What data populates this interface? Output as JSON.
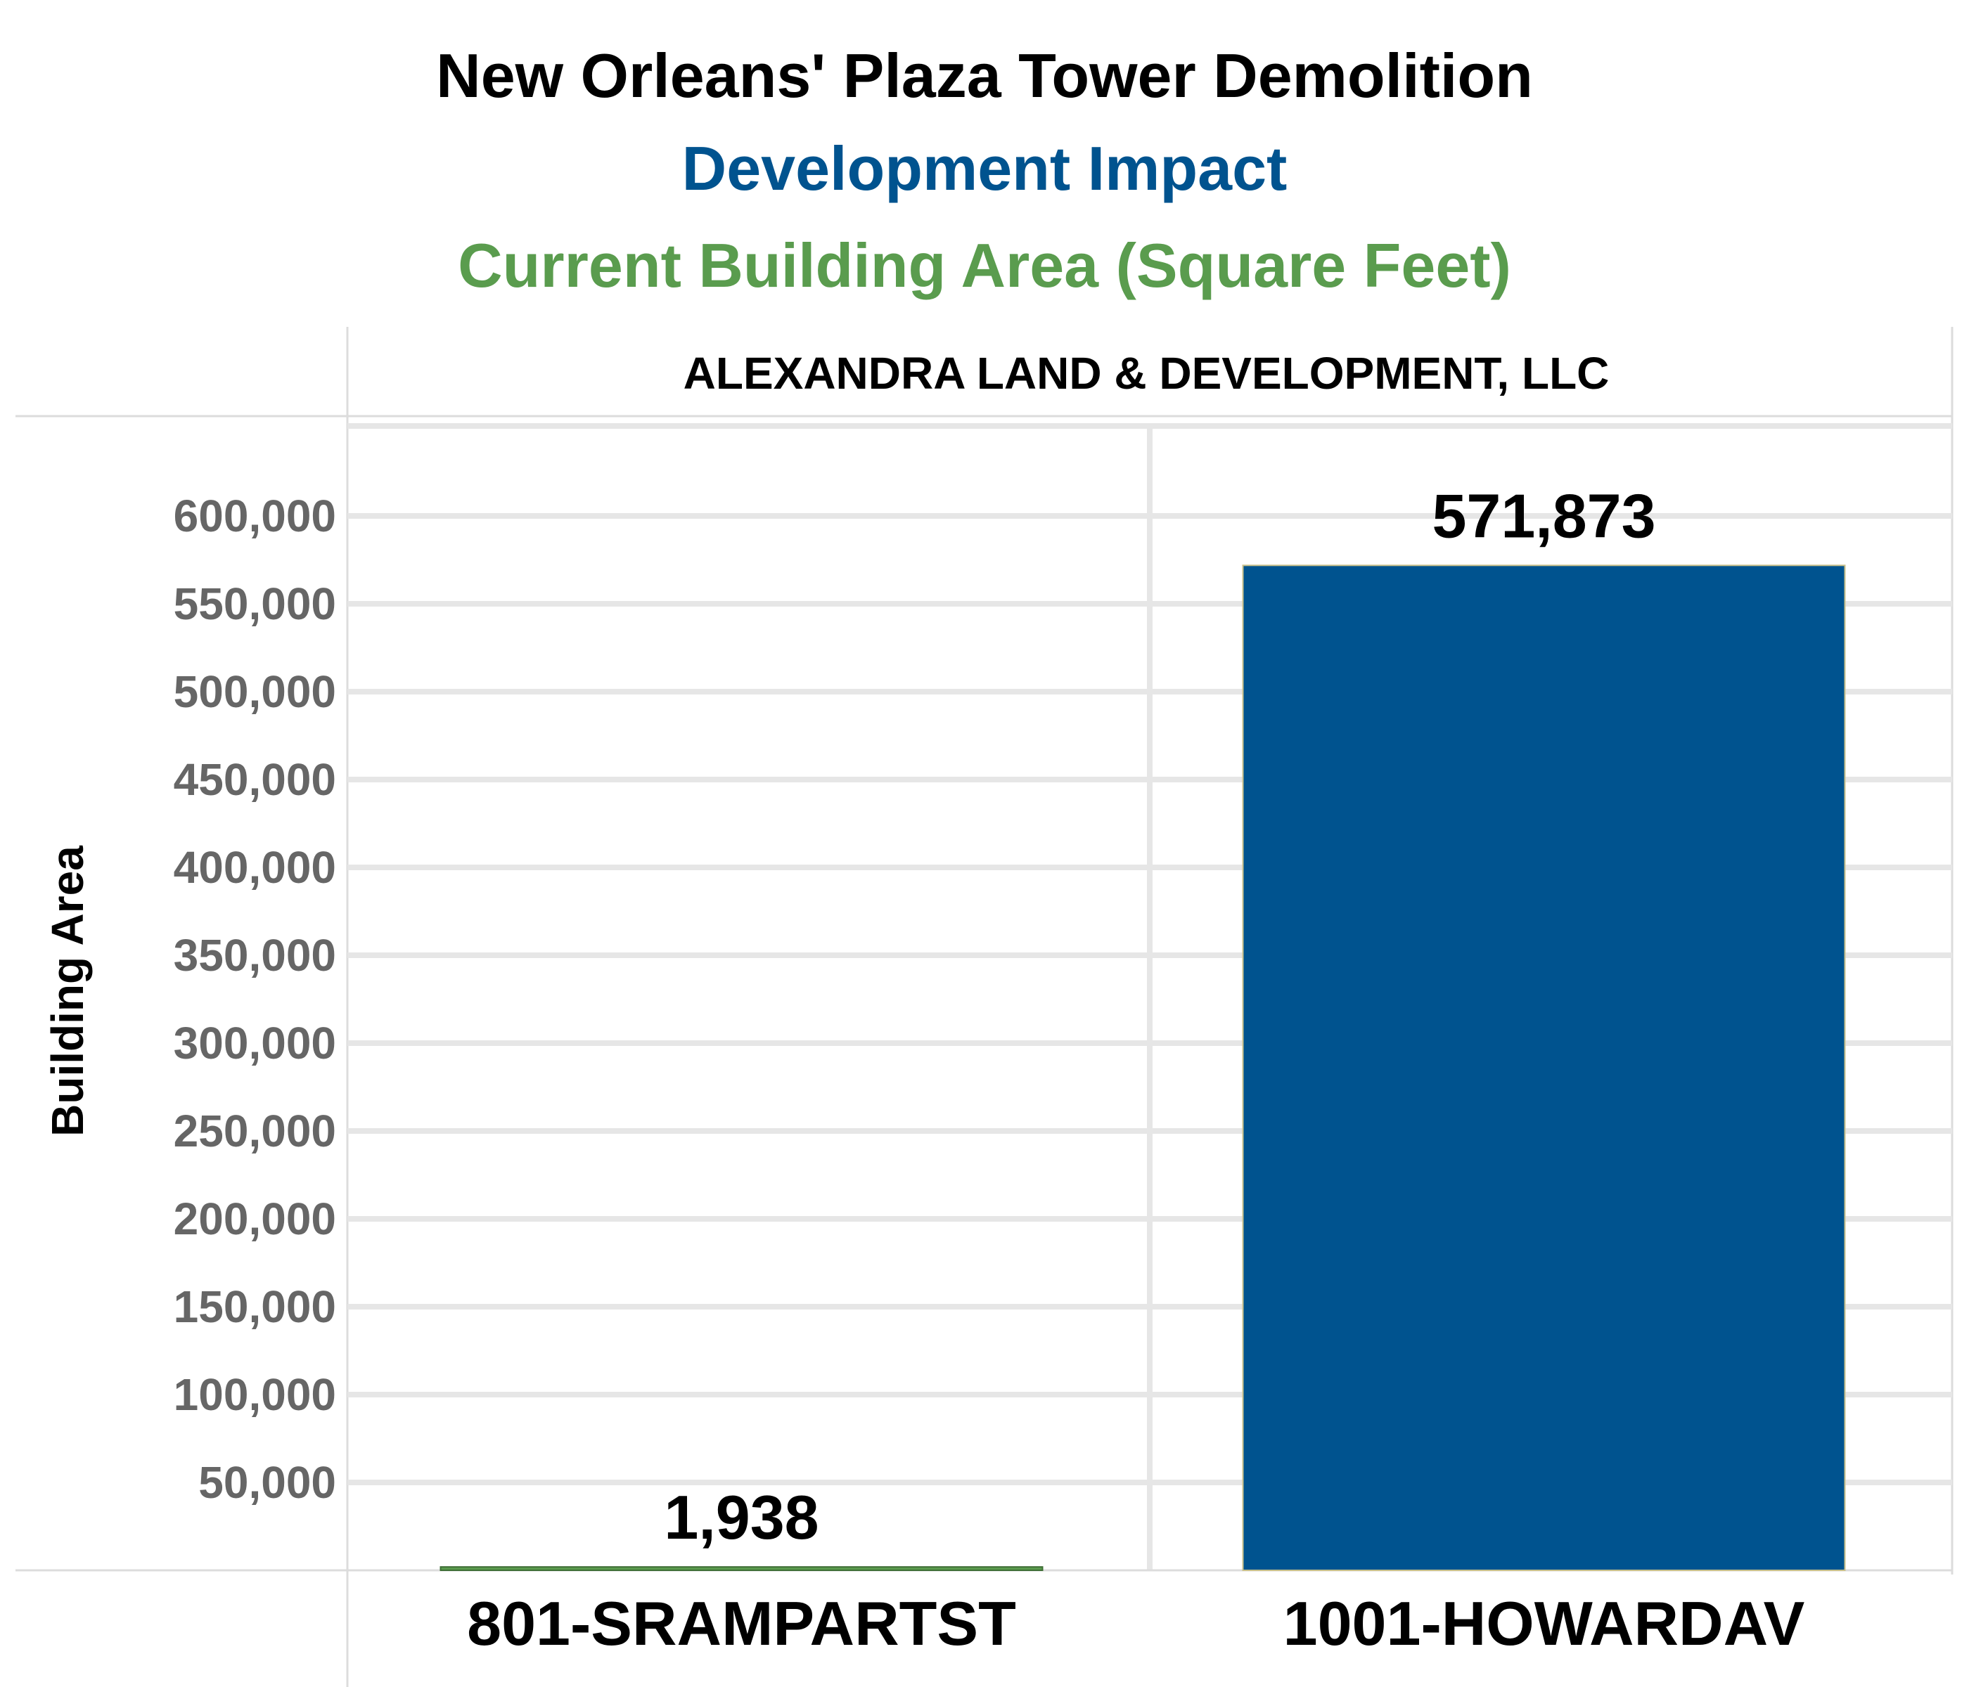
{
  "chart_data": {
    "type": "bar",
    "title": "New Orleans' Plaza Tower Demolition",
    "subtitle": "Development Impact",
    "subtitle2": "Current Building Area (Square Feet)",
    "panel_header": "ALEXANDRA LAND & DEVELOPMENT, LLC",
    "ylabel": "Building Area",
    "xlabel": "",
    "categories": [
      "801-SRAMPARTST",
      "1001-HOWARDAV"
    ],
    "values": [
      1938,
      571873
    ],
    "value_labels": [
      "1,938",
      "571,873"
    ],
    "bar_colors": [
      "#5a9c4e",
      "#00538f"
    ],
    "ylim": [
      0,
      650000
    ],
    "yticks": [
      50000,
      100000,
      150000,
      200000,
      250000,
      300000,
      350000,
      400000,
      450000,
      500000,
      550000,
      600000
    ],
    "ytick_labels": [
      "50,000",
      "100,000",
      "150,000",
      "200,000",
      "250,000",
      "300,000",
      "350,000",
      "400,000",
      "450,000",
      "500,000",
      "550,000",
      "600,000"
    ],
    "grid": true,
    "legend": "none",
    "colors": {
      "title": "#000000",
      "subtitle": "#00538f",
      "subtitle2": "#5a9c4e",
      "tick_label": "#666666",
      "grid": "#e6e6e6"
    }
  }
}
